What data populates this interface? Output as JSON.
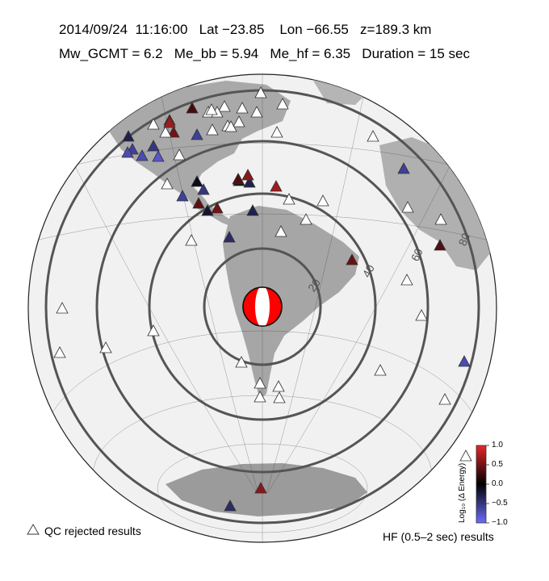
{
  "header": {
    "line1": "2014/09/24  11:16:00   Lat −23.85    Lon −66.55   z=189.3 km",
    "line2": "Mw_GCMT = 6.2   Me_bb = 5.94   Me_hf = 6.35   Duration = 15 sec"
  },
  "map": {
    "contour_labels": [
      "20",
      "40",
      "60",
      "80"
    ],
    "colors": {
      "ocean": "#f1f1f1",
      "land": "#a8a8a8",
      "contour": "#555555",
      "beachball_red": "#ff0000",
      "rejected_fill": "#ffffff"
    },
    "icons": {
      "event": "beachball-icon",
      "station": "triangle-icon"
    },
    "stations": [
      {
        "v": null
      },
      {
        "v": null
      },
      {
        "v": null
      },
      {
        "v": null
      },
      {
        "v": null
      },
      {
        "v": null
      },
      {
        "v": null
      },
      {
        "v": null
      },
      {
        "v": null
      },
      {
        "v": null
      },
      {
        "v": -0.3
      },
      {
        "v": 0.6
      },
      {
        "v": 0.5
      },
      {
        "v": 0.3
      },
      {
        "v": -0.6
      },
      {
        "v": -0.7
      },
      {
        "v": -0.5
      },
      {
        "v": -0.7
      },
      {
        "v": -0.8
      },
      {
        "v": -0.6
      },
      {
        "v": -0.1
      },
      {
        "v": -0.6
      },
      {
        "v": -0.3
      },
      {
        "v": -0.5
      },
      {
        "v": 0.6
      },
      {
        "v": 0.7
      },
      {
        "v": 0.4
      },
      {
        "v": -0.2
      },
      {
        "v": 0.5
      },
      {
        "v": -0.3
      },
      {
        "v": -0.4
      },
      {
        "v": 0.45
      },
      {
        "v": -0.1
      },
      {
        "v": 0.35
      },
      {
        "v": -0.7
      },
      {
        "v": 0.6
      },
      {
        "v": 0.35
      },
      {
        "v": -0.6
      },
      {
        "v": 0.7
      },
      {
        "v": -0.4
      },
      {
        "v": null
      },
      {
        "v": null
      },
      {
        "v": null
      },
      {
        "v": null
      },
      {
        "v": null
      },
      {
        "v": null
      },
      {
        "v": null
      },
      {
        "v": null
      },
      {
        "v": null
      },
      {
        "v": null
      },
      {
        "v": null
      },
      {
        "v": null
      },
      {
        "v": null
      },
      {
        "v": null
      },
      {
        "v": null
      },
      {
        "v": null
      },
      {
        "v": null
      },
      {
        "v": null
      },
      {
        "v": null
      },
      {
        "v": null
      },
      {
        "v": null
      },
      {
        "v": null
      },
      {
        "v": null
      },
      {
        "v": null
      },
      {
        "v": null
      },
      {
        "v": null
      },
      {
        "v": null
      },
      {
        "v": null
      },
      {
        "v": null
      }
    ]
  },
  "colorbar": {
    "label": "Log₁₀ (Δ Energy)",
    "ticks": [
      "1.0",
      "0.5",
      "0.0",
      "−0.5",
      "−1.0"
    ],
    "min": -1.0,
    "max": 1.0,
    "colors": {
      "high": "#e8262a",
      "mid": "#000000",
      "low": "#6b6bff"
    }
  },
  "legend": {
    "qc_rejected": "QC rejected results",
    "hf_label": "HF (0.5–2 sec) results"
  }
}
